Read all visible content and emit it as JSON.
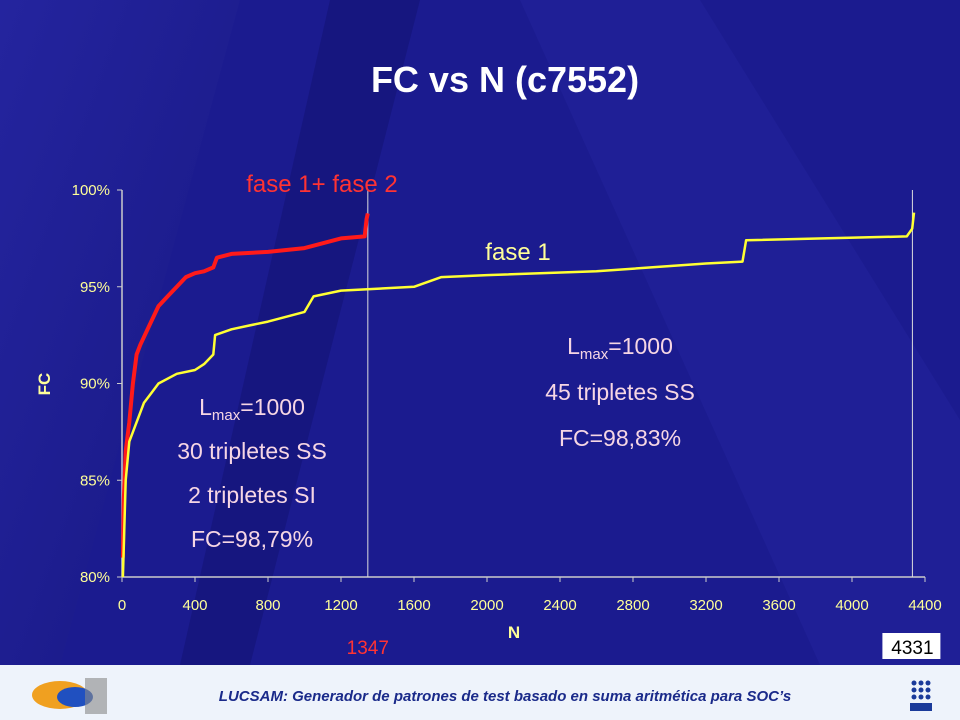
{
  "chart_data": {
    "type": "line",
    "title": "FC vs N (c7552)",
    "x_label": "N",
    "y_label": "FC",
    "xlim": [
      0,
      4400
    ],
    "xticks": [
      0,
      400,
      800,
      1200,
      1600,
      2000,
      2400,
      2800,
      3200,
      3600,
      4000,
      4400
    ],
    "ylim": [
      80,
      100
    ],
    "yticks": [
      {
        "value": 80,
        "label": "80%"
      },
      {
        "value": 85,
        "label": "85%"
      },
      {
        "value": 90,
        "label": "90%"
      },
      {
        "value": 95,
        "label": "95%"
      },
      {
        "value": 100,
        "label": "100%"
      }
    ],
    "series": [
      {
        "name": "fase 1+ fase 2",
        "color": "#ff1a1a",
        "x": [
          5,
          10,
          20,
          40,
          60,
          80,
          100,
          150,
          200,
          250,
          300,
          350,
          400,
          450,
          500,
          520,
          600,
          800,
          1000,
          1200,
          1330,
          1340,
          1347
        ],
        "values": [
          81,
          84,
          86.5,
          88,
          90,
          91.5,
          92,
          93,
          94,
          94.5,
          95,
          95.5,
          95.7,
          95.8,
          96,
          96.5,
          96.7,
          96.8,
          97,
          97.5,
          97.6,
          98.5,
          98.79
        ]
      },
      {
        "name": "fase 1",
        "color": "#ffff33",
        "x": [
          5,
          20,
          40,
          80,
          120,
          160,
          200,
          300,
          400,
          450,
          500,
          510,
          600,
          700,
          800,
          1000,
          1050,
          1200,
          1600,
          1750,
          2000,
          2600,
          3200,
          3400,
          3420,
          4300,
          4330,
          4340
        ],
        "values": [
          80,
          85,
          87,
          88,
          89,
          89.5,
          90,
          90.5,
          90.7,
          91,
          91.5,
          92.5,
          92.8,
          93,
          93.2,
          93.7,
          94.5,
          94.8,
          95,
          95.5,
          95.6,
          95.8,
          96.2,
          96.3,
          97.4,
          97.6,
          98,
          98.83
        ]
      }
    ],
    "vlines": [
      1347,
      4331
    ],
    "annotations": [
      {
        "l": "L",
        "sub": "max",
        "rest": "=1000",
        "lines": [
          "30 tripletes SS",
          "2 tripletes SI",
          "FC=98,79%"
        ]
      },
      {
        "l": "L",
        "sub": "max",
        "rest": "=1000",
        "lines": [
          "45 tripletes SS",
          "FC=98,83%"
        ]
      }
    ]
  },
  "footer": {
    "text": "LUCSAM: Generador de patrones de test basado en suma aritmética para SOC’s"
  }
}
